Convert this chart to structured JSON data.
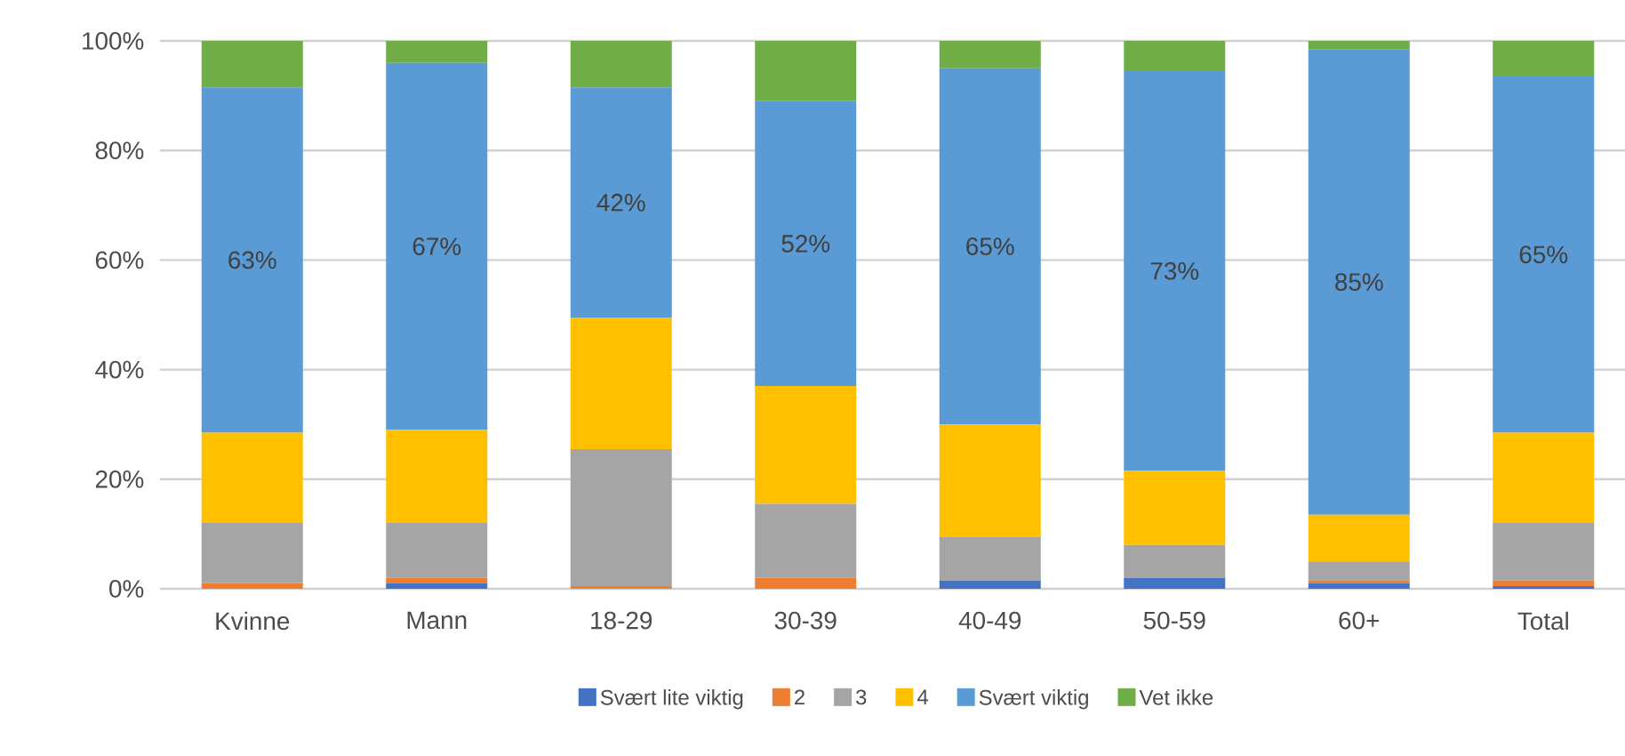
{
  "chart_data": {
    "type": "bar",
    "stacked": true,
    "categories": [
      "Kvinne",
      "Mann",
      "18-29",
      "30-39",
      "40-49",
      "50-59",
      "60+",
      "Total"
    ],
    "series": [
      {
        "name": "Svært lite viktig",
        "color": "#4472c4",
        "values": [
          0,
          1,
          0,
          0,
          1.5,
          2,
          1,
          0.5
        ]
      },
      {
        "name": "2",
        "color": "#ed7d31",
        "values": [
          1,
          1,
          0.5,
          2,
          0,
          0,
          0.5,
          1
        ]
      },
      {
        "name": "3",
        "color": "#a5a5a5",
        "values": [
          11,
          10,
          25,
          13.5,
          8,
          6,
          3.5,
          10.5
        ]
      },
      {
        "name": "4",
        "color": "#ffc000",
        "values": [
          16.5,
          17,
          24,
          21.5,
          20.5,
          13.5,
          8.5,
          16.5
        ]
      },
      {
        "name": "Svært viktig",
        "color": "#5b9bd5",
        "values": [
          63,
          67,
          42,
          52,
          65,
          73,
          85,
          65
        ],
        "value_labels": [
          "63%",
          "67%",
          "42%",
          "52%",
          "65%",
          "73%",
          "85%",
          "65%"
        ]
      },
      {
        "name": "Vet ikke",
        "color": "#70ad47",
        "values": [
          8.5,
          4,
          8.5,
          11,
          5,
          5.5,
          1.5,
          6.5
        ]
      }
    ],
    "ylim": [
      0,
      100
    ],
    "yticks": [
      {
        "value": 0,
        "label": "0%"
      },
      {
        "value": 20,
        "label": "20%"
      },
      {
        "value": 40,
        "label": "40%"
      },
      {
        "value": 60,
        "label": "60%"
      },
      {
        "value": 80,
        "label": "80%"
      },
      {
        "value": 100,
        "label": "100%"
      }
    ],
    "grid": "y",
    "legend": "bottom"
  }
}
